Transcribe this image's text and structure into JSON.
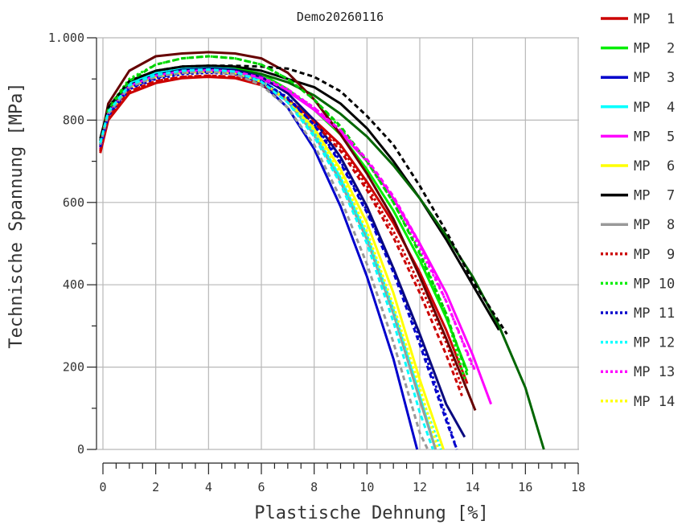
{
  "chart_data": {
    "type": "line",
    "title": "Demo20260116",
    "xlabel": "Plastische Dehnung [%]",
    "ylabel": "Technische Spannung [MPa]",
    "xlim": [
      -0.2,
      18
    ],
    "ylim": [
      0,
      1000
    ],
    "x_ticks": [
      0,
      2,
      4,
      6,
      8,
      10,
      12,
      14,
      16,
      18
    ],
    "x_tick_labels": [
      "0",
      "2",
      "4",
      "6",
      "8",
      "10",
      "12",
      "14",
      "16",
      "18"
    ],
    "y_ticks": [
      0,
      200,
      400,
      600,
      800,
      1000
    ],
    "y_tick_labels": [
      "0",
      "200",
      "400",
      "600",
      "800",
      "1.000"
    ],
    "grid": true,
    "legend_position": "right",
    "series": [
      {
        "name": "MP  1",
        "color": "#cc0000",
        "style": "solid",
        "x": [
          -0.1,
          0.2,
          1,
          2,
          3,
          4,
          5,
          6,
          7,
          8,
          9,
          10,
          11,
          12,
          13,
          13.8
        ],
        "y": [
          720,
          800,
          865,
          890,
          902,
          905,
          902,
          885,
          850,
          800,
          740,
          650,
          550,
          430,
          290,
          160
        ]
      },
      {
        "name": "MP  2",
        "color": "#00ee00",
        "style": "solid",
        "x": [
          -0.1,
          0.2,
          1,
          2,
          3,
          4,
          5,
          6,
          7,
          8,
          9,
          10,
          11,
          12,
          13,
          13.8
        ],
        "y": [
          730,
          820,
          890,
          915,
          928,
          932,
          928,
          912,
          875,
          825,
          765,
          680,
          580,
          460,
          320,
          190
        ]
      },
      {
        "name": "MP  3",
        "color": "#0000cc",
        "style": "solid",
        "x": [
          -0.1,
          0.2,
          1,
          2,
          3,
          4,
          5,
          6,
          7,
          8,
          9,
          10,
          11,
          11.9
        ],
        "y": [
          745,
          815,
          880,
          905,
          915,
          918,
          913,
          890,
          830,
          730,
          590,
          420,
          220,
          0
        ]
      },
      {
        "name": "MP  4",
        "color": "#00ffff",
        "style": "solid",
        "x": [
          -0.1,
          0.2,
          1,
          2,
          3,
          4,
          5,
          6,
          7,
          8,
          9,
          10,
          11,
          12,
          12.6
        ],
        "y": [
          750,
          825,
          890,
          915,
          925,
          928,
          923,
          900,
          850,
          770,
          660,
          520,
          340,
          130,
          0
        ]
      },
      {
        "name": "MP  5",
        "color": "#ff00ff",
        "style": "solid",
        "x": [
          -0.1,
          0.2,
          1,
          2,
          3,
          4,
          5,
          6,
          7,
          8,
          9,
          10,
          11,
          12,
          13,
          14,
          14.7
        ],
        "y": [
          730,
          815,
          880,
          905,
          915,
          918,
          914,
          900,
          870,
          825,
          770,
          700,
          610,
          500,
          380,
          230,
          110
        ]
      },
      {
        "name": "MP  6",
        "color": "#ffff00",
        "style": "solid",
        "x": [
          -0.1,
          0.2,
          1,
          2,
          3,
          4,
          5,
          6,
          7,
          8,
          9,
          10,
          11,
          12,
          12.9
        ],
        "y": [
          740,
          815,
          880,
          905,
          915,
          918,
          914,
          895,
          850,
          780,
          680,
          550,
          380,
          170,
          0
        ]
      },
      {
        "name": "MP  7",
        "color": "#000000",
        "style": "solid",
        "x": [
          -0.1,
          0.2,
          1,
          2,
          3,
          4,
          5,
          6,
          7,
          8,
          9,
          10,
          11,
          12,
          13,
          14,
          15
        ],
        "y": [
          755,
          830,
          895,
          920,
          930,
          932,
          930,
          920,
          900,
          880,
          840,
          780,
          700,
          610,
          510,
          400,
          290
        ]
      },
      {
        "name": "MP  8",
        "color": "#999999",
        "style": "solid",
        "x": [
          -0.1,
          0.2,
          1,
          2,
          3,
          4,
          5,
          6,
          7,
          8,
          9,
          10,
          11,
          12,
          12.6
        ],
        "y": [
          745,
          820,
          885,
          910,
          920,
          923,
          918,
          895,
          845,
          765,
          650,
          510,
          330,
          120,
          0
        ]
      },
      {
        "name": "MP  9",
        "color": "#cc0000",
        "style": "dotted",
        "x": [
          -0.1,
          0.2,
          1,
          2,
          3,
          4,
          5,
          6,
          7,
          8,
          9,
          10,
          11,
          12,
          13,
          13.6
        ],
        "y": [
          725,
          805,
          870,
          895,
          905,
          908,
          905,
          888,
          852,
          800,
          735,
          640,
          530,
          400,
          260,
          150
        ]
      },
      {
        "name": "MP 10",
        "color": "#00ee00",
        "style": "dotted",
        "x": [
          -0.1,
          0.2,
          1,
          2,
          3,
          4,
          5,
          6,
          7,
          8,
          9,
          10,
          11,
          12,
          13,
          13.7
        ],
        "y": [
          740,
          830,
          900,
          935,
          950,
          955,
          950,
          935,
          900,
          850,
          780,
          700,
          600,
          480,
          330,
          170
        ]
      },
      {
        "name": "MP 11",
        "color": "#0000cc",
        "style": "dotted",
        "x": [
          -0.1,
          0.2,
          1,
          2,
          3,
          4,
          5,
          6,
          7,
          8,
          9,
          10,
          11,
          12,
          13,
          13.4
        ],
        "y": [
          735,
          810,
          875,
          900,
          912,
          915,
          912,
          895,
          855,
          790,
          700,
          580,
          440,
          270,
          80,
          0
        ]
      },
      {
        "name": "MP 12",
        "color": "#00ffff",
        "style": "dotted",
        "x": [
          -0.1,
          0.2,
          1,
          2,
          3,
          4,
          5,
          6,
          7,
          8,
          9,
          10,
          11,
          12,
          12.8
        ],
        "y": [
          745,
          820,
          885,
          910,
          920,
          923,
          918,
          895,
          848,
          770,
          660,
          520,
          340,
          140,
          0
        ]
      },
      {
        "name": "MP 13",
        "color": "#ff00ff",
        "style": "dotted",
        "x": [
          -0.1,
          0.2,
          1,
          2,
          3,
          4,
          5,
          6,
          7,
          8,
          9,
          10,
          11,
          12,
          13,
          14
        ],
        "y": [
          735,
          820,
          885,
          910,
          920,
          923,
          920,
          905,
          875,
          830,
          775,
          700,
          610,
          490,
          360,
          200
        ]
      },
      {
        "name": "MP 14",
        "color": "#ffff00",
        "style": "dotted",
        "x": [
          -0.1,
          0.2,
          1,
          2,
          3,
          4,
          5,
          6,
          7,
          8,
          9,
          10,
          11,
          12,
          12.7
        ],
        "y": [
          740,
          815,
          880,
          905,
          915,
          918,
          914,
          893,
          848,
          775,
          670,
          530,
          350,
          150,
          0
        ]
      },
      {
        "name": "",
        "color": "#006600",
        "style": "solid",
        "x": [
          -0.1,
          0.2,
          1,
          2,
          3,
          4,
          5,
          6,
          7,
          8,
          9,
          10,
          11,
          12,
          13,
          14,
          15,
          16,
          16.7
        ],
        "y": [
          735,
          820,
          885,
          910,
          922,
          925,
          922,
          912,
          892,
          860,
          815,
          760,
          690,
          610,
          520,
          420,
          300,
          150,
          0
        ]
      },
      {
        "name": "",
        "color": "#660000",
        "style": "solid",
        "x": [
          -0.1,
          0.2,
          1,
          2,
          3,
          4,
          5,
          6,
          7,
          8,
          9,
          10,
          11,
          12,
          13,
          14.1
        ],
        "y": [
          740,
          840,
          920,
          955,
          962,
          965,
          962,
          950,
          915,
          850,
          765,
          670,
          560,
          420,
          270,
          95
        ]
      },
      {
        "name": "",
        "color": "#0a0a80",
        "style": "solid",
        "x": [
          -0.1,
          0.2,
          1,
          2,
          3,
          4,
          5,
          6,
          7,
          8,
          9,
          10,
          11,
          12,
          13,
          13.7
        ],
        "y": [
          740,
          820,
          885,
          910,
          922,
          925,
          922,
          905,
          865,
          800,
          710,
          590,
          440,
          280,
          110,
          30
        ]
      },
      {
        "name": "",
        "color": "#000000",
        "style": "dashed",
        "x": [
          -0.1,
          0.2,
          1,
          2,
          3,
          4,
          5,
          6,
          7,
          8,
          9,
          10,
          11,
          12,
          13,
          14,
          15.3
        ],
        "y": [
          750,
          830,
          895,
          920,
          930,
          932,
          932,
          930,
          925,
          905,
          870,
          810,
          740,
          640,
          530,
          410,
          280
        ]
      },
      {
        "name": "",
        "color": "#00cc00",
        "style": "dashed",
        "x": [
          -0.1,
          0.2,
          1,
          2,
          3,
          4,
          5,
          6,
          7,
          8,
          9,
          10,
          11,
          12,
          13,
          13.8
        ],
        "y": [
          740,
          825,
          895,
          935,
          950,
          955,
          950,
          935,
          900,
          850,
          785,
          700,
          600,
          475,
          330,
          180
        ]
      },
      {
        "name": "",
        "color": "#ff00ff",
        "style": "dashed",
        "x": [
          -0.1,
          0.2,
          1,
          2,
          3,
          4,
          5,
          6,
          7,
          8,
          9,
          10,
          11,
          12,
          13,
          14.1
        ],
        "y": [
          735,
          815,
          882,
          908,
          918,
          921,
          918,
          903,
          873,
          830,
          775,
          705,
          615,
          500,
          360,
          190
        ]
      },
      {
        "name": "",
        "color": "#cc0000",
        "style": "dashed",
        "x": [
          -0.1,
          0.2,
          1,
          2,
          3,
          4,
          5,
          6,
          7,
          8,
          9,
          10,
          11,
          12,
          13,
          13.6
        ],
        "y": [
          725,
          805,
          870,
          895,
          905,
          908,
          905,
          888,
          850,
          795,
          725,
          630,
          515,
          380,
          230,
          130
        ]
      },
      {
        "name": "",
        "color": "#0000cc",
        "style": "dashed",
        "x": [
          -0.1,
          0.2,
          1,
          2,
          3,
          4,
          5,
          6,
          7,
          8,
          9,
          10,
          11,
          12,
          13,
          13.4
        ],
        "y": [
          735,
          812,
          878,
          903,
          914,
          917,
          913,
          895,
          853,
          788,
          695,
          575,
          430,
          255,
          70,
          0
        ]
      },
      {
        "name": "",
        "color": "#999999",
        "style": "dashed",
        "x": [
          -0.1,
          0.2,
          1,
          2,
          3,
          4,
          5,
          6,
          7,
          8,
          9,
          10,
          11,
          12,
          12.3
        ],
        "y": [
          740,
          815,
          880,
          905,
          915,
          918,
          912,
          885,
          830,
          740,
          610,
          450,
          260,
          40,
          0
        ]
      },
      {
        "name": "",
        "color": "#00ffff",
        "style": "dashed",
        "x": [
          -0.1,
          0.2,
          1,
          2,
          3,
          4,
          5,
          6,
          7,
          8,
          9,
          10,
          11,
          12,
          12.5
        ],
        "y": [
          745,
          820,
          885,
          910,
          920,
          923,
          918,
          893,
          843,
          760,
          645,
          500,
          310,
          90,
          0
        ]
      }
    ]
  }
}
